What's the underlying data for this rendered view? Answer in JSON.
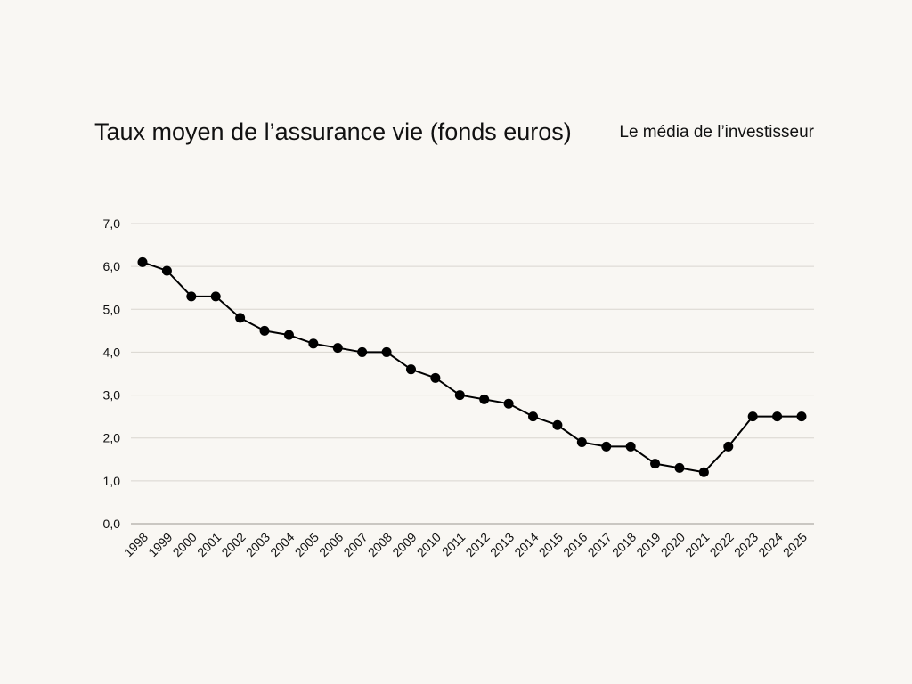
{
  "header": {
    "title": "Taux moyen de l’assurance vie (fonds euros)",
    "brand": "Le média de l’investisseur"
  },
  "chart_data": {
    "type": "line",
    "title": "Taux moyen de l’assurance vie (fonds euros)",
    "xlabel": "",
    "ylabel": "",
    "x": [
      "1998",
      "1999",
      "2000",
      "2001",
      "2002",
      "2003",
      "2004",
      "2005",
      "2006",
      "2007",
      "2008",
      "2009",
      "2010",
      "2011",
      "2012",
      "2013",
      "2014",
      "2015",
      "2016",
      "2017",
      "2018",
      "2019",
      "2020",
      "2021",
      "2022",
      "2023",
      "2024",
      "2025"
    ],
    "series": [
      {
        "values": [
          6.1,
          5.9,
          5.3,
          5.3,
          4.8,
          4.5,
          4.4,
          4.2,
          4.1,
          4.0,
          4.0,
          3.6,
          3.4,
          3.0,
          2.9,
          2.8,
          2.5,
          2.3,
          1.9,
          1.8,
          1.8,
          1.4,
          1.3,
          1.2,
          1.8,
          2.5,
          2.5,
          2.5
        ]
      }
    ],
    "ylim": [
      0,
      7
    ],
    "yticks": [
      "0,0",
      "1,0",
      "2,0",
      "3,0",
      "4,0",
      "5,0",
      "6,0",
      "7,0"
    ],
    "grid": true,
    "legend": "none",
    "colors": {
      "line": "#000000",
      "marker": "#000000",
      "grid": "#d9d6d0",
      "axis": "#9a9790"
    }
  }
}
